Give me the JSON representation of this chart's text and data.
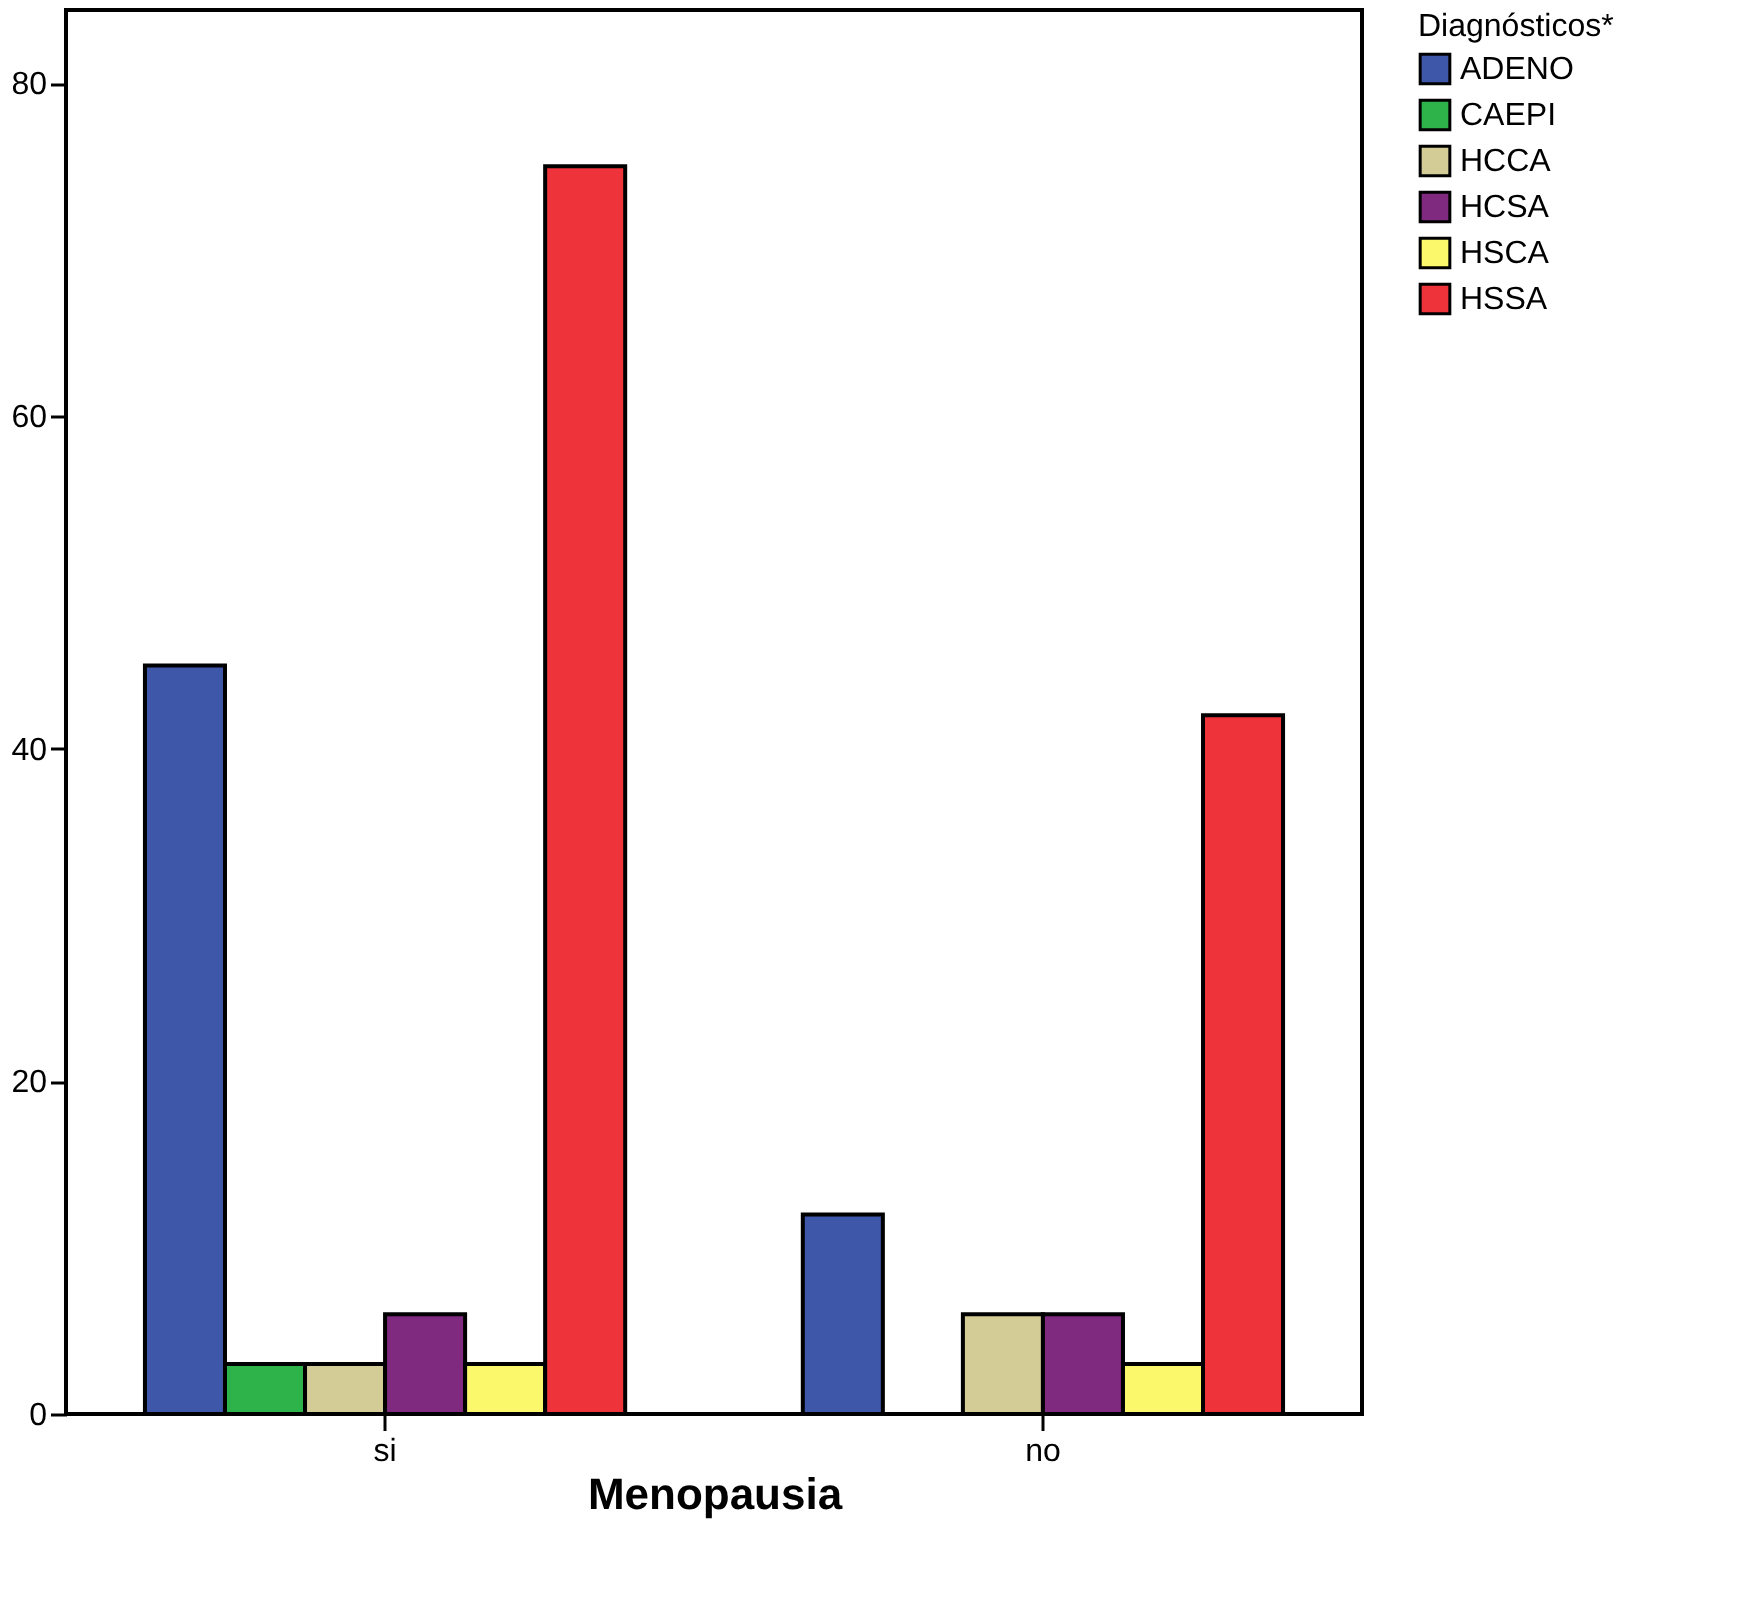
{
  "chart_data": {
    "type": "bar",
    "xlabel": "Menopausia",
    "legend_title": "Diagnósticos*",
    "categories": [
      "si",
      "no"
    ],
    "series": [
      {
        "name": "ADENO",
        "color": "#3f57a8",
        "values": [
          45,
          12
        ]
      },
      {
        "name": "CAEPI",
        "color": "#2db34a",
        "values": [
          3,
          null
        ]
      },
      {
        "name": "HCCA",
        "color": "#d4cc97",
        "values": [
          3,
          6
        ]
      },
      {
        "name": "HCSA",
        "color": "#7f2a7f",
        "values": [
          6,
          6
        ]
      },
      {
        "name": "HSCA",
        "color": "#fbf96b",
        "values": [
          3,
          3
        ]
      },
      {
        "name": "HSSA",
        "color": "#ee333b",
        "values": [
          75,
          42
        ]
      }
    ],
    "ylim": [
      0,
      84.4
    ],
    "yticks": [
      0,
      20,
      40,
      60,
      80
    ],
    "grid": false,
    "legend": "top right"
  }
}
